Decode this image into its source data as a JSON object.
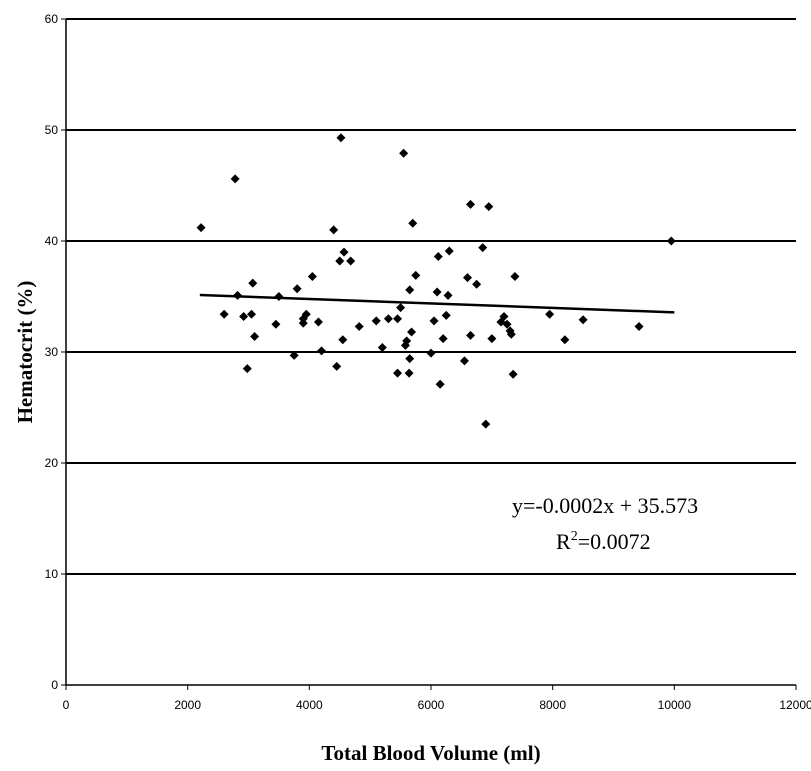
{
  "chart_data": {
    "type": "scatter",
    "xlabel": "Total Blood Volume (ml)",
    "ylabel": "Hematocrit (%)",
    "xlim": [
      0,
      12000
    ],
    "ylim": [
      0,
      60
    ],
    "xticks": [
      "0",
      "2000",
      "4000",
      "6000",
      "8000",
      "10000",
      "12000"
    ],
    "yticks": [
      "0",
      "10",
      "20",
      "30",
      "40",
      "50",
      "60"
    ],
    "grid": "horizontal",
    "points": [
      {
        "x": 2220,
        "y": 41.2
      },
      {
        "x": 2780,
        "y": 45.6
      },
      {
        "x": 2820,
        "y": 35.1
      },
      {
        "x": 2600,
        "y": 33.4
      },
      {
        "x": 2920,
        "y": 33.2
      },
      {
        "x": 3050,
        "y": 33.4
      },
      {
        "x": 3070,
        "y": 36.2
      },
      {
        "x": 3100,
        "y": 31.4
      },
      {
        "x": 2980,
        "y": 28.5
      },
      {
        "x": 3500,
        "y": 35.0
      },
      {
        "x": 3450,
        "y": 32.5
      },
      {
        "x": 3800,
        "y": 35.7
      },
      {
        "x": 3750,
        "y": 29.7
      },
      {
        "x": 3900,
        "y": 33.0
      },
      {
        "x": 3950,
        "y": 33.4
      },
      {
        "x": 3900,
        "y": 32.6
      },
      {
        "x": 4050,
        "y": 36.8
      },
      {
        "x": 4150,
        "y": 32.7
      },
      {
        "x": 4200,
        "y": 30.1
      },
      {
        "x": 4400,
        "y": 41.0
      },
      {
        "x": 4450,
        "y": 28.7
      },
      {
        "x": 4500,
        "y": 38.2
      },
      {
        "x": 4520,
        "y": 49.3
      },
      {
        "x": 4570,
        "y": 39.0
      },
      {
        "x": 4550,
        "y": 31.1
      },
      {
        "x": 4680,
        "y": 38.2
      },
      {
        "x": 4820,
        "y": 32.3
      },
      {
        "x": 5100,
        "y": 32.8
      },
      {
        "x": 5200,
        "y": 30.4
      },
      {
        "x": 5300,
        "y": 33.0
      },
      {
        "x": 5450,
        "y": 33.0
      },
      {
        "x": 5500,
        "y": 34.0
      },
      {
        "x": 5450,
        "y": 28.1
      },
      {
        "x": 5550,
        "y": 47.9
      },
      {
        "x": 5580,
        "y": 30.6
      },
      {
        "x": 5600,
        "y": 31.0
      },
      {
        "x": 5650,
        "y": 35.6
      },
      {
        "x": 5700,
        "y": 41.6
      },
      {
        "x": 5750,
        "y": 36.9
      },
      {
        "x": 5680,
        "y": 31.8
      },
      {
        "x": 5650,
        "y": 29.4
      },
      {
        "x": 5640,
        "y": 28.1
      },
      {
        "x": 6000,
        "y": 29.9
      },
      {
        "x": 6050,
        "y": 32.8
      },
      {
        "x": 6100,
        "y": 35.4
      },
      {
        "x": 6120,
        "y": 38.6
      },
      {
        "x": 6150,
        "y": 27.1
      },
      {
        "x": 6200,
        "y": 31.2
      },
      {
        "x": 6250,
        "y": 33.3
      },
      {
        "x": 6280,
        "y": 35.1
      },
      {
        "x": 6300,
        "y": 39.1
      },
      {
        "x": 6550,
        "y": 29.2
      },
      {
        "x": 6600,
        "y": 36.7
      },
      {
        "x": 6650,
        "y": 43.3
      },
      {
        "x": 6650,
        "y": 31.5
      },
      {
        "x": 6750,
        "y": 36.1
      },
      {
        "x": 6850,
        "y": 39.4
      },
      {
        "x": 6900,
        "y": 23.5
      },
      {
        "x": 6950,
        "y": 43.1
      },
      {
        "x": 7000,
        "y": 31.2
      },
      {
        "x": 7150,
        "y": 32.7
      },
      {
        "x": 7200,
        "y": 33.2
      },
      {
        "x": 7250,
        "y": 32.5
      },
      {
        "x": 7300,
        "y": 31.9
      },
      {
        "x": 7320,
        "y": 31.6
      },
      {
        "x": 7350,
        "y": 28.0
      },
      {
        "x": 7380,
        "y": 36.8
      },
      {
        "x": 7950,
        "y": 33.4
      },
      {
        "x": 8200,
        "y": 31.1
      },
      {
        "x": 8500,
        "y": 32.9
      },
      {
        "x": 9420,
        "y": 32.3
      },
      {
        "x": 9950,
        "y": 40.0
      }
    ],
    "trendline": {
      "x1": 2200,
      "x2": 10000,
      "slope": -0.0002,
      "intercept": 35.573
    },
    "annotation": [
      "y=-0.0002x + 35.573",
      "R",
      "2",
      "=0.0072"
    ]
  }
}
